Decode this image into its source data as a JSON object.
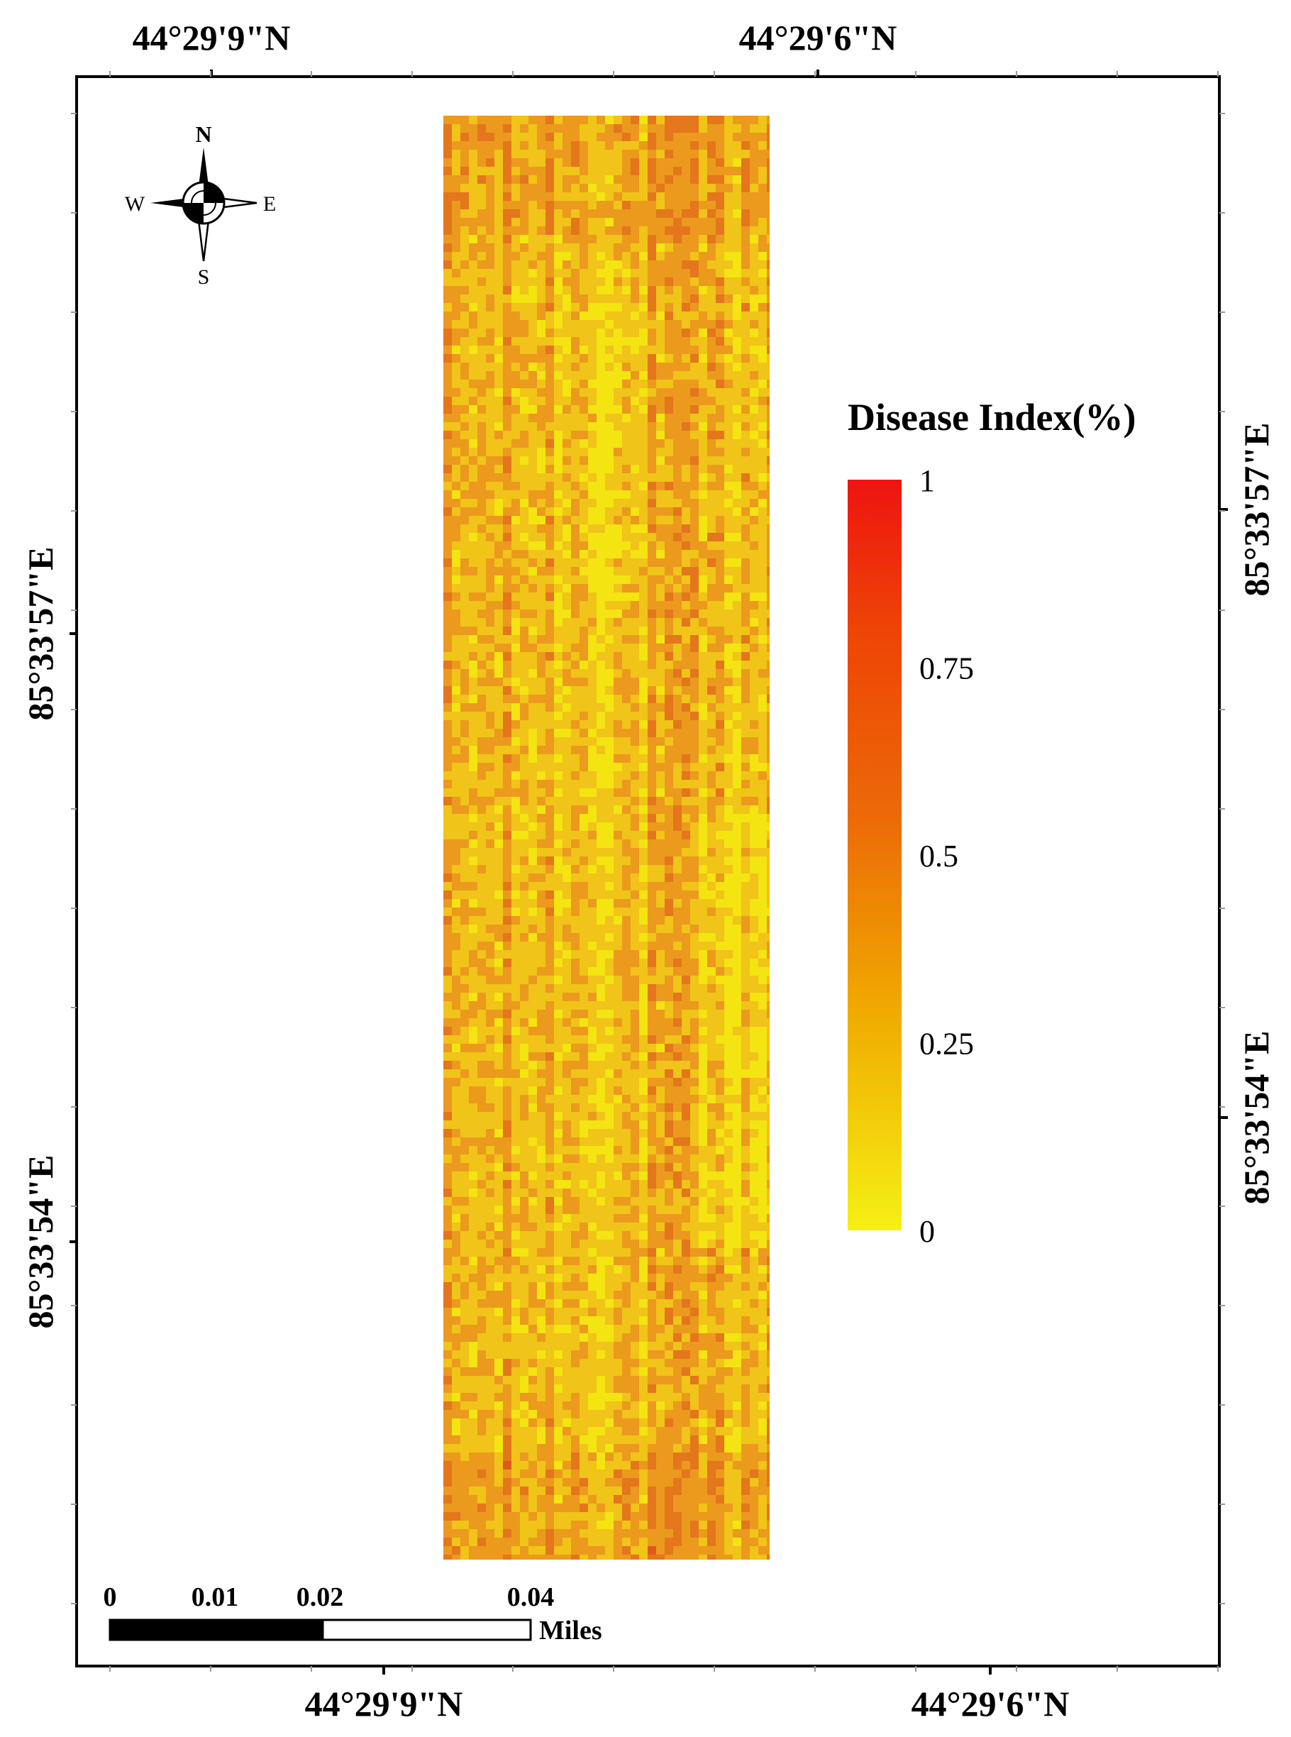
{
  "map": {
    "top_labels": [
      "44°29'9\"N",
      "44°29'6\"N"
    ],
    "bottom_labels": [
      "44°29'9\"N",
      "44°29'6\"N"
    ],
    "left_labels": [
      "85°33'57\"E",
      "85°33'54\"E"
    ],
    "right_labels": [
      "85°33'57\"E",
      "85°33'54\"E"
    ]
  },
  "compass": {
    "n": "N",
    "s": "S",
    "e": "E",
    "w": "W"
  },
  "legend": {
    "title": "Disease Index(%)",
    "min": 0,
    "max": 1,
    "ticks": [
      "1",
      "0.75",
      "0.5",
      "0.25",
      "0"
    ],
    "colors": {
      "low": "#f5f014",
      "mid_low": "#f0a800",
      "mid": "#ec6a08",
      "mid_high": "#ee4406",
      "high": "#ee1410"
    }
  },
  "scale_bar": {
    "labels": [
      "0",
      "0.01",
      "0.02",
      "0.04"
    ],
    "unit": "Miles"
  },
  "raster": {
    "colors": [
      "#f3e412",
      "#f0c418",
      "#eb9a1e",
      "#e4761c",
      "#de5a1a"
    ]
  }
}
